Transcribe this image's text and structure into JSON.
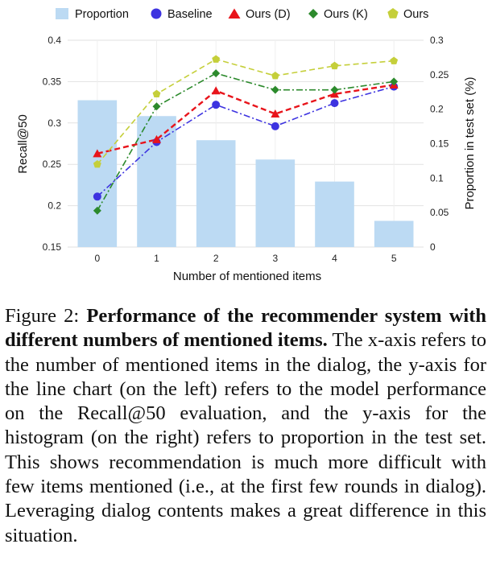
{
  "chart_data": {
    "type": "bar+line",
    "xlabel": "Number of mentioned items",
    "ylabel_left": "Recall@50",
    "ylabel_right": "Proportion in test set (%)",
    "categories": [
      "0",
      "1",
      "2",
      "3",
      "4",
      "5"
    ],
    "ylim_left": [
      0.15,
      0.4
    ],
    "yticks_left": [
      "0.15",
      "0.2",
      "0.25",
      "0.3",
      "0.35",
      "0.4"
    ],
    "ylim_right": [
      0,
      0.3
    ],
    "yticks_right": [
      "0",
      "0.05",
      "0.1",
      "0.15",
      "0.2",
      "0.25",
      "0.3"
    ],
    "bars": {
      "name": "Proportion",
      "color": "#bcdaf3",
      "values": [
        0.213,
        0.19,
        0.155,
        0.127,
        0.095,
        0.038
      ]
    },
    "series": [
      {
        "name": "Baseline",
        "color": "#3d33e0",
        "marker": "circle",
        "dash": "dashdot",
        "values": [
          0.211,
          0.277,
          0.322,
          0.296,
          0.324,
          0.344
        ]
      },
      {
        "name": "Ours (D)",
        "color": "#e8141b",
        "marker": "triangle",
        "dash": "dashed",
        "values": [
          0.263,
          0.28,
          0.339,
          0.311,
          0.335,
          0.346
        ]
      },
      {
        "name": "Ours (K)",
        "color": "#2c8a2c",
        "marker": "diamond",
        "dash": "dashdot",
        "values": [
          0.194,
          0.32,
          0.36,
          0.34,
          0.34,
          0.35
        ]
      },
      {
        "name": "Ours",
        "color": "#c5cf3a",
        "marker": "pentagon",
        "dash": "dashed",
        "values": [
          0.25,
          0.335,
          0.377,
          0.357,
          0.369,
          0.375
        ]
      }
    ]
  },
  "caption": {
    "label": "Figure 2:",
    "bold": "Performance of the recommender system with different numbers of mentioned items.",
    "body": "The x-axis refers to the number of mentioned items in the dialog, the y-axis for the line chart (on the left) refers to the model performance on the Recall@50 evaluation, and the y-axis for the histogram (on the right) refers to proportion in the test set. This shows recommendation is much more difficult with few items mentioned (i.e., at the first few rounds in dialog).  Leveraging dialog contents makes a great difference in this situation."
  }
}
